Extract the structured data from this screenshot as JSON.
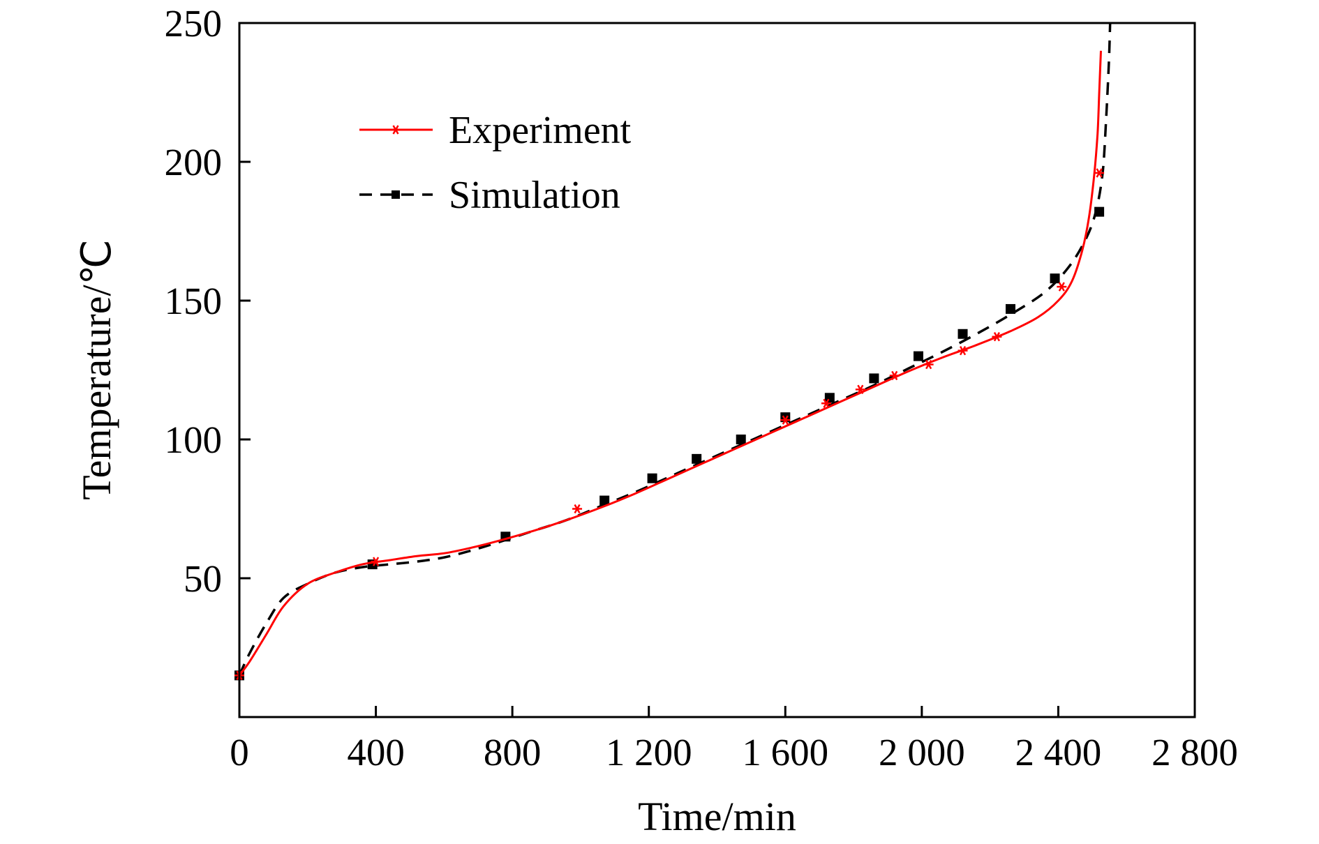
{
  "chart_data": {
    "type": "line",
    "title": "",
    "xlabel": "Time/min",
    "ylabel": "Temperature/℃",
    "xlim": [
      0,
      2800
    ],
    "ylim": [
      0,
      250
    ],
    "x_ticks": [
      {
        "value": 0,
        "label": "0"
      },
      {
        "value": 400,
        "label": "400"
      },
      {
        "value": 800,
        "label": "800"
      },
      {
        "value": 1200,
        "label": "1 200"
      },
      {
        "value": 1600,
        "label": "1 600"
      },
      {
        "value": 2000,
        "label": "2 000"
      },
      {
        "value": 2400,
        "label": "2 400"
      },
      {
        "value": 2800,
        "label": "2 800"
      }
    ],
    "y_ticks": [
      {
        "value": 50,
        "label": "50"
      },
      {
        "value": 100,
        "label": "100"
      },
      {
        "value": 150,
        "label": "150"
      },
      {
        "value": 200,
        "label": "200"
      },
      {
        "value": 250,
        "label": "250"
      }
    ],
    "grid": false,
    "legend_position": "top-left",
    "series": [
      {
        "name": "Experiment",
        "color": "#ff0000",
        "line_style": "solid",
        "marker": "star",
        "x": [
          0,
          30,
          80,
          130,
          200,
          280,
          360,
          440,
          520,
          600,
          680,
          760,
          860,
          960,
          1060,
          1160,
          1260,
          1360,
          1460,
          1560,
          1660,
          1760,
          1860,
          1960,
          2060,
          2160,
          2260,
          2340,
          2400,
          2440,
          2470,
          2490,
          2505,
          2515,
          2520,
          2525
        ],
        "y": [
          15,
          20,
          30,
          40,
          48,
          52,
          55,
          56.5,
          58,
          59,
          61,
          63.5,
          67,
          71,
          75.5,
          80.5,
          86,
          91.5,
          97,
          102.5,
          108,
          113.5,
          119,
          124.5,
          129.5,
          134,
          139,
          144,
          150,
          157,
          168,
          180,
          195,
          210,
          225,
          240
        ],
        "marker_x": [
          0,
          400,
          990,
          1600,
          1720,
          1820,
          1920,
          2020,
          2120,
          2220,
          2410,
          2520
        ],
        "marker_y": [
          15,
          56,
          75,
          107,
          113,
          118,
          123,
          127,
          132,
          137,
          155,
          196
        ]
      },
      {
        "name": "Simulation",
        "color": "#000000",
        "line_style": "dashed",
        "marker": "square",
        "x": [
          0,
          30,
          80,
          130,
          200,
          280,
          360,
          440,
          520,
          600,
          680,
          760,
          860,
          960,
          1060,
          1160,
          1260,
          1360,
          1460,
          1560,
          1660,
          1760,
          1860,
          1960,
          2060,
          2160,
          2260,
          2360,
          2430,
          2480,
          2510,
          2530,
          2540,
          2548,
          2552
        ],
        "y": [
          15,
          23,
          34,
          43,
          48,
          52,
          54,
          55,
          56,
          57.5,
          60,
          63,
          67,
          71,
          76,
          81,
          86.5,
          92,
          97.5,
          103,
          108.5,
          114,
          119.5,
          125.5,
          131.5,
          138,
          145,
          153,
          162,
          172,
          182,
          196,
          215,
          235,
          250
        ],
        "marker_x": [
          0,
          390,
          780,
          1070,
          1210,
          1340,
          1470,
          1600,
          1730,
          1860,
          1990,
          2120,
          2260,
          2390,
          2520
        ],
        "marker_y": [
          15,
          55,
          65,
          78,
          86,
          93,
          100,
          108,
          115,
          122,
          130,
          138,
          147,
          158,
          182
        ]
      }
    ]
  }
}
